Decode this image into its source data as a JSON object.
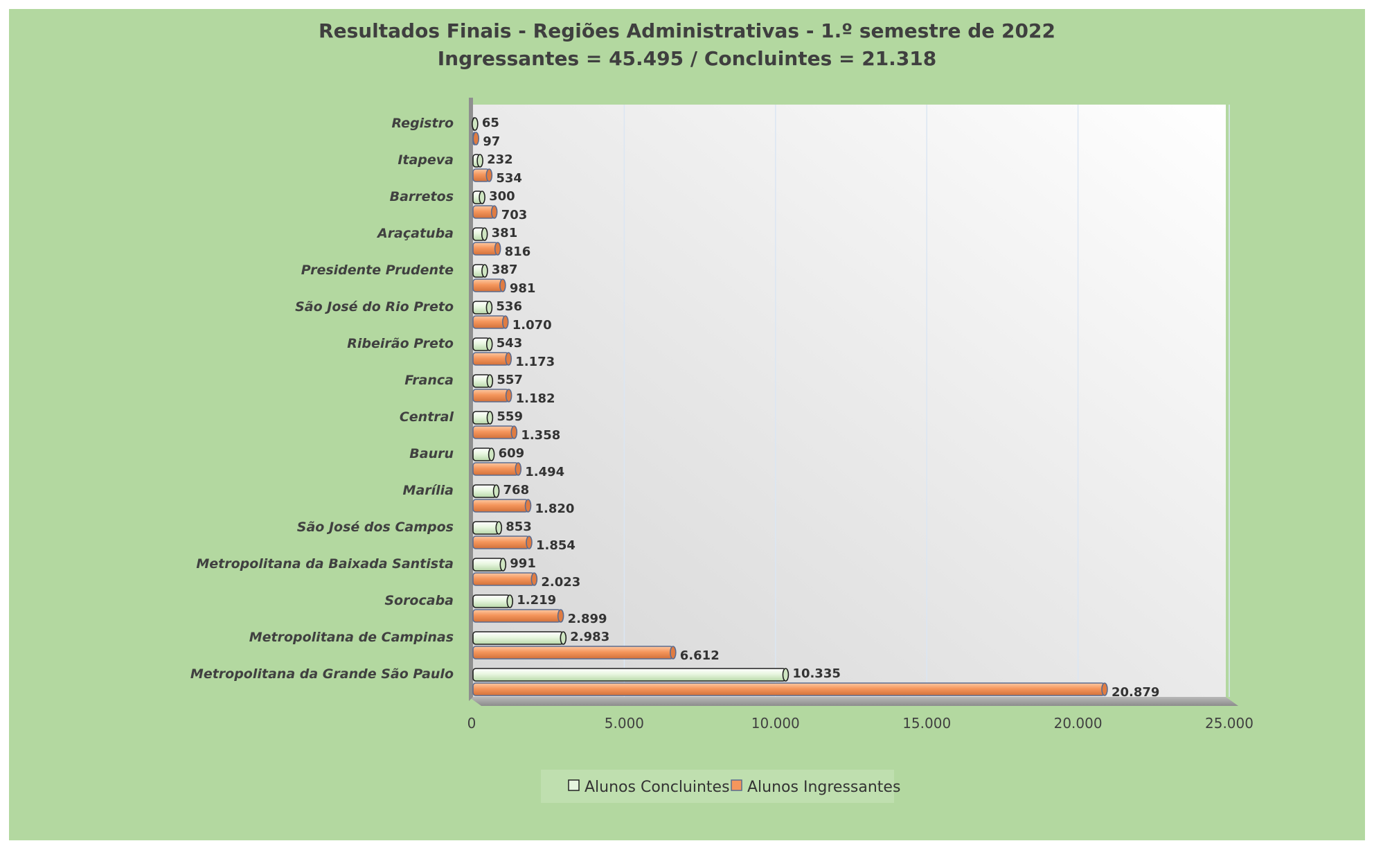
{
  "chart_data": {
    "type": "bar",
    "orientation": "horizontal",
    "title": "Resultados Finais - Regiões Administrativas - 1.º semestre de 2022",
    "subtitle": "Ingressantes = 45.495 / Concluintes = 21.318",
    "categories": [
      "Registro",
      "Itapeva",
      "Barretos",
      "Araçatuba",
      "Presidente Prudente",
      "São José do Rio Preto",
      "Ribeirão Preto",
      "Franca",
      "Central",
      "Bauru",
      "Marília",
      "São José dos Campos",
      "Metropolitana da Baixada Santista",
      "Sorocaba",
      "Metropolitana de Campinas",
      "Metropolitana da Grande São Paulo"
    ],
    "series": [
      {
        "name": "Alunos Concluintes",
        "color": "#e6f5df",
        "values": [
          65,
          232,
          300,
          381,
          387,
          536,
          543,
          557,
          559,
          609,
          768,
          853,
          991,
          1219,
          2983,
          10335
        ],
        "labels": [
          "65",
          "232",
          "300",
          "381",
          "387",
          "536",
          "543",
          "557",
          "559",
          "609",
          "768",
          "853",
          "991",
          "1.219",
          "2.983",
          "10.335"
        ]
      },
      {
        "name": "Alunos Ingressantes",
        "color": "#f5965c",
        "values": [
          97,
          534,
          703,
          816,
          981,
          1070,
          1173,
          1182,
          1358,
          1494,
          1820,
          1854,
          2023,
          2899,
          6612,
          20879
        ],
        "labels": [
          "97",
          "534",
          "703",
          "816",
          "981",
          "1.070",
          "1.173",
          "1.182",
          "1.358",
          "1.494",
          "1.820",
          "1.854",
          "2.023",
          "2.899",
          "6.612",
          "20.879"
        ]
      }
    ],
    "xlim": [
      0,
      25000
    ],
    "xticks": [
      0,
      5000,
      10000,
      15000,
      20000,
      25000
    ],
    "xtick_labels": [
      "0",
      "5.000",
      "10.000",
      "15.000",
      "20.000",
      "25.000"
    ],
    "grid": true,
    "legend_position": "bottom"
  }
}
